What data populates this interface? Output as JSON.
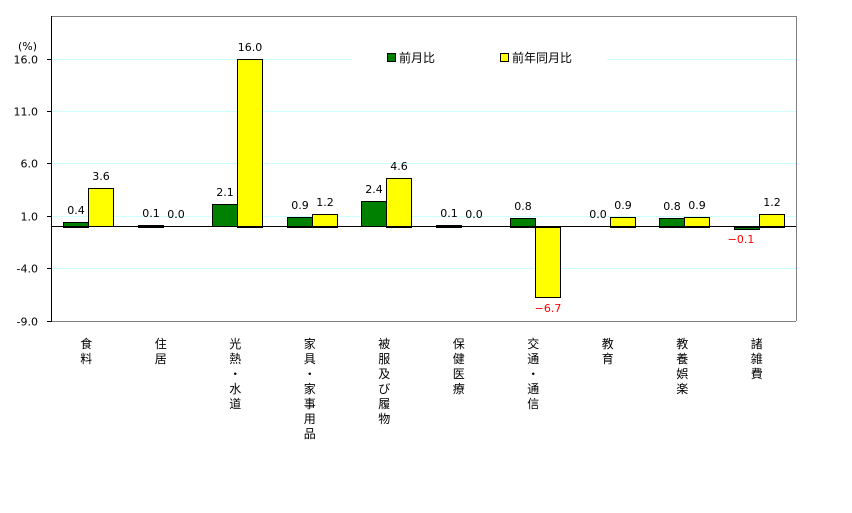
{
  "chart_data": {
    "type": "bar",
    "title": "",
    "ylabel": "(%)",
    "xlabel": "",
    "ylim": [
      -9.0,
      19.0
    ],
    "yticks": [
      16.0,
      11.0,
      6.0,
      1.0,
      -4.0,
      -9.0
    ],
    "ytick_labels": [
      "16.0",
      "11.0",
      "6.0",
      "1.0",
      "-4.0",
      "-9.0"
    ],
    "grid": true,
    "legend_position": "top-inside",
    "categories": [
      "食料",
      "住居",
      "光熱・水道",
      "家具・家事用品",
      "被服及び履物",
      "保健医療",
      "交通・通信",
      "教育",
      "教養娯楽",
      "諸雑費"
    ],
    "category_lines": [
      [
        "食",
        "料"
      ],
      [
        "住",
        "居"
      ],
      [
        "光",
        "熱",
        "・",
        "水",
        "道"
      ],
      [
        "家",
        "具",
        "・",
        "家",
        "事",
        "用",
        "品"
      ],
      [
        "被",
        "服",
        "及",
        "び",
        "履",
        "物"
      ],
      [
        "保",
        "健",
        "医",
        "療"
      ],
      [
        "交",
        "通",
        "・",
        "通",
        "信"
      ],
      [
        "教",
        "育"
      ],
      [
        "教",
        "養",
        "娯",
        "楽"
      ],
      [
        "諸",
        "雑",
        "費"
      ]
    ],
    "series": [
      {
        "name": "前月比",
        "color": "#008000",
        "values": [
          0.4,
          0.1,
          2.1,
          0.9,
          2.4,
          0.1,
          0.8,
          0.0,
          0.8,
          -0.1
        ],
        "labels": [
          "0.4",
          "0.1",
          "2.1",
          "0.9",
          "2.4",
          "0.1",
          "0.8",
          "0.0",
          "0.8",
          "-0.1"
        ]
      },
      {
        "name": "前年同月比",
        "color": "#ffff00",
        "values": [
          3.6,
          0.0,
          16.0,
          1.2,
          4.6,
          0.0,
          -6.7,
          0.9,
          0.9,
          1.2
        ],
        "labels": [
          "3.6",
          "0.0",
          "16.0",
          "1.2",
          "4.6",
          "0.0",
          "-6.7",
          "0.9",
          "0.9",
          "1.2"
        ]
      }
    ]
  },
  "colors": {
    "gridline": "#ccffff",
    "negative_label": "#ff0000",
    "frame": "#808080"
  }
}
